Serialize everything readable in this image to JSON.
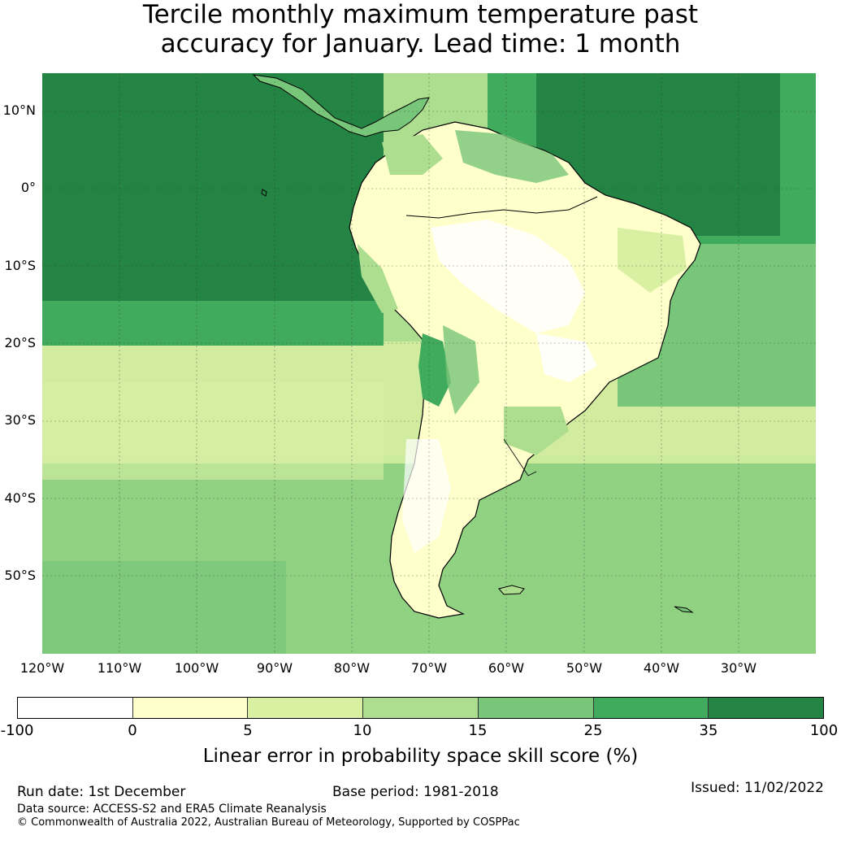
{
  "title_line1": "Tercile monthly maximum temperature past",
  "title_line2": "accuracy for January. Lead time: 1 month",
  "map": {
    "region": "South America",
    "lat_labels": [
      "10°N",
      "0°",
      "10°S",
      "20°S",
      "30°S",
      "40°S",
      "50°S"
    ],
    "lon_labels": [
      "120°W",
      "110°W",
      "100°W",
      "90°W",
      "80°W",
      "70°W",
      "60°W",
      "50°W",
      "40°W",
      "30°W"
    ],
    "ocean_note": "dark green north Pacific, lighter greens to south",
    "land_fill": "#ffffe0"
  },
  "colorbar": {
    "ticks": [
      "-100",
      "0",
      "5",
      "10",
      "15",
      "25",
      "35",
      "100"
    ],
    "colors": [
      "#ffffff",
      "#ffffcc",
      "#d9f0a3",
      "#addd8e",
      "#78c679",
      "#41ab5d",
      "#238443"
    ],
    "label": "Linear error in probability space skill score (%)"
  },
  "footer": {
    "run_date": "Run date: 1st December",
    "base_period": "Base period: 1981-2018",
    "issued": "Issued: 11/02/2022",
    "data_source": "Data source: ACCESS-S2 and ERA5 Climate Reanalysis",
    "copyright": "© Commonwealth of Australia 2022, Australian Bureau of Meteorology, Supported by COSPPac"
  }
}
